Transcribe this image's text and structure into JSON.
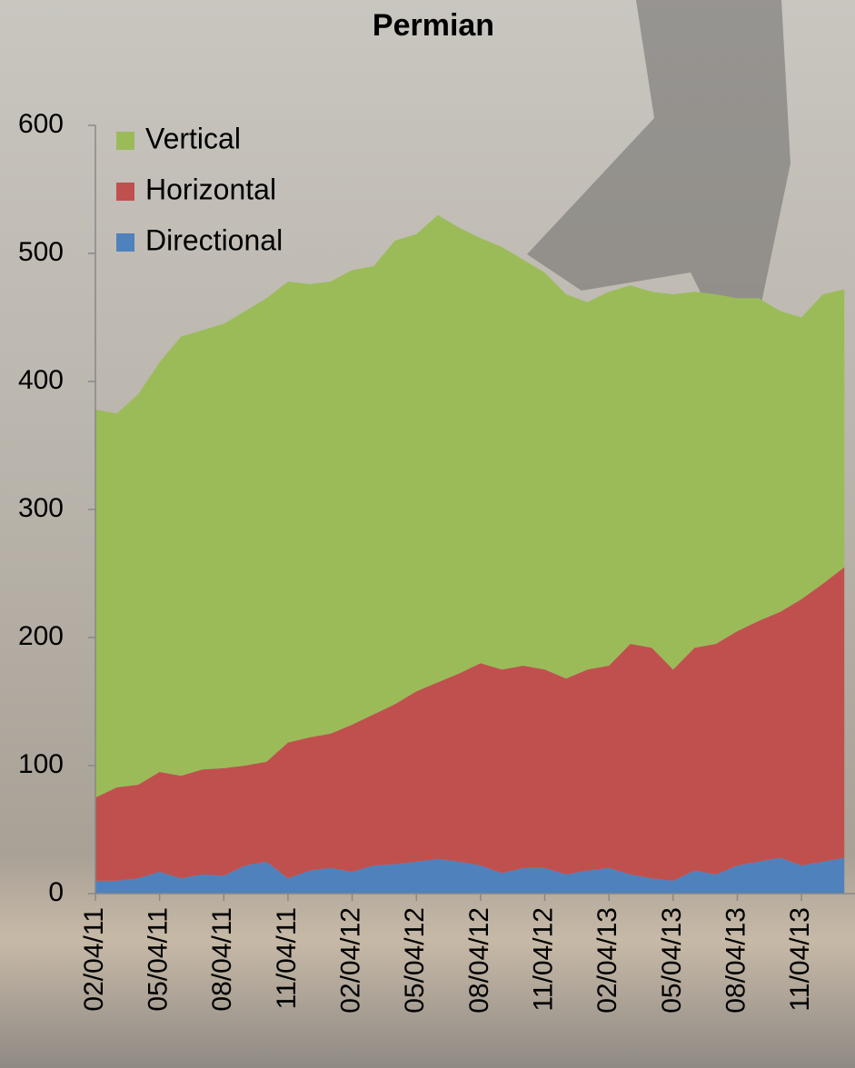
{
  "chart_data": {
    "type": "stacked-area",
    "title": "Permian",
    "categories": [
      "02/04/11",
      null,
      null,
      "05/04/11",
      null,
      null,
      "08/04/11",
      null,
      null,
      "11/04/11",
      null,
      null,
      "02/04/12",
      null,
      null,
      "05/04/12",
      null,
      null,
      "08/04/12",
      null,
      null,
      "11/04/12",
      null,
      null,
      "02/04/13",
      null,
      null,
      "05/04/13",
      null,
      null,
      "08/04/13",
      null,
      null,
      "11/04/13",
      null,
      null
    ],
    "series": [
      {
        "name": "Directional",
        "color": "#4f81bd",
        "values": [
          10,
          10,
          12,
          17,
          12,
          15,
          14,
          22,
          25,
          12,
          18,
          20,
          17,
          22,
          23,
          25,
          27,
          25,
          22,
          16,
          20,
          20,
          15,
          18,
          20,
          15,
          12,
          10,
          18,
          15,
          22,
          25,
          28,
          22,
          25,
          28
        ]
      },
      {
        "name": "Horizontal",
        "color": "#c0504d",
        "values": [
          65,
          73,
          73,
          78,
          80,
          82,
          84,
          78,
          78,
          106,
          104,
          105,
          115,
          118,
          125,
          133,
          138,
          147,
          158,
          159,
          158,
          155,
          153,
          157,
          158,
          180,
          180,
          165,
          174,
          180,
          183,
          188,
          192,
          208,
          217,
          227
        ]
      },
      {
        "name": "Vertical",
        "color": "#9bbb59",
        "values": [
          303,
          292,
          305,
          320,
          343,
          343,
          347,
          355,
          362,
          360,
          354,
          353,
          355,
          350,
          362,
          357,
          365,
          348,
          332,
          330,
          317,
          310,
          300,
          287,
          292,
          280,
          278,
          293,
          278,
          273,
          260,
          252,
          235,
          220,
          226,
          217
        ]
      }
    ],
    "ylim": [
      0,
      600
    ],
    "yticks": [
      0,
      100,
      200,
      300,
      400,
      500,
      600
    ],
    "legend": "top-left"
  }
}
